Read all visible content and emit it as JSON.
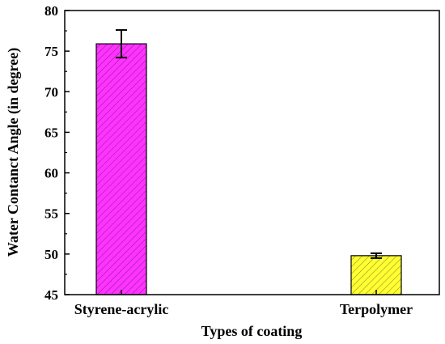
{
  "chart_data": {
    "type": "bar",
    "title": "",
    "xlabel": "Types of coating",
    "ylabel": "Water Contanct Angle (in degree)",
    "categories": [
      "Styrene-acrylic",
      "Terpolymer"
    ],
    "values": [
      75.9,
      49.8
    ],
    "errors": [
      1.7,
      0.3
    ],
    "ylim": [
      45,
      80
    ],
    "yticks": [
      "45",
      "50",
      "55",
      "60",
      "65",
      "70",
      "75",
      "80"
    ],
    "colors": [
      "#ff33ff",
      "#ffff33"
    ],
    "hatch": "diagonal",
    "grid": false,
    "legend": "none"
  }
}
